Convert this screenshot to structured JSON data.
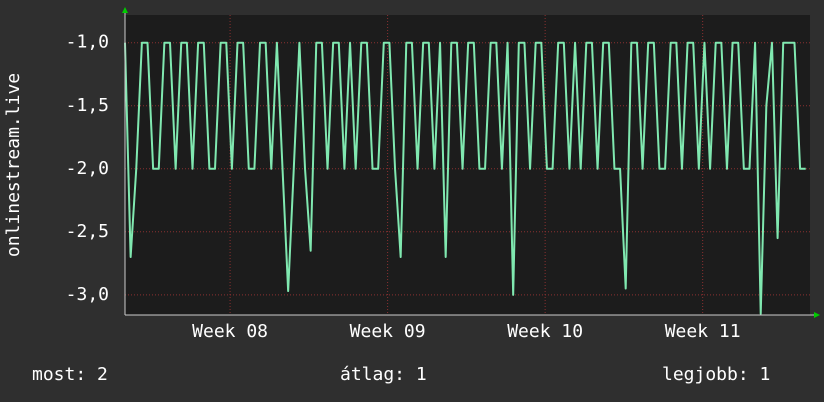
{
  "chart_data": {
    "type": "line",
    "y_label": "onlinestream.live",
    "ylim": [
      -3.16,
      -0.78
    ],
    "yticks": [
      {
        "value": -1.0,
        "label": "-1,0"
      },
      {
        "value": -1.5,
        "label": "-1,5"
      },
      {
        "value": -2.0,
        "label": "-2,0"
      },
      {
        "value": -2.5,
        "label": "-2,5"
      },
      {
        "value": -3.0,
        "label": "-3,0"
      }
    ],
    "xlim": [
      0,
      30.44
    ],
    "xticks": [
      {
        "value": 4.67,
        "label": "Week 08"
      },
      {
        "value": 11.67,
        "label": "Week 09"
      },
      {
        "value": 18.67,
        "label": "Week 10"
      },
      {
        "value": 25.67,
        "label": "Week 11"
      }
    ],
    "grid": true,
    "x": [
      0,
      0.25,
      0.5,
      0.75,
      1,
      1.25,
      1.5,
      1.75,
      2,
      2.25,
      2.5,
      2.75,
      3,
      3.25,
      3.5,
      3.75,
      4,
      4.25,
      4.5,
      4.75,
      5,
      5.25,
      5.5,
      5.75,
      6,
      6.25,
      6.5,
      6.75,
      7,
      7.25,
      7.5,
      7.75,
      8,
      8.25,
      8.5,
      8.75,
      9,
      9.25,
      9.5,
      9.75,
      10,
      10.25,
      10.5,
      10.75,
      11,
      11.25,
      11.5,
      11.75,
      12,
      12.25,
      12.5,
      12.75,
      13,
      13.25,
      13.5,
      13.75,
      14,
      14.25,
      14.5,
      14.75,
      15,
      15.25,
      15.5,
      15.75,
      16,
      16.25,
      16.5,
      16.75,
      17,
      17.25,
      17.5,
      17.75,
      18,
      18.25,
      18.5,
      18.75,
      19,
      19.25,
      19.5,
      19.75,
      20,
      20.25,
      20.5,
      20.75,
      21,
      21.25,
      21.5,
      21.75,
      22,
      22.25,
      22.5,
      22.75,
      23,
      23.25,
      23.5,
      23.75,
      24,
      24.25,
      24.5,
      24.75,
      25,
      25.25,
      25.5,
      25.75,
      26,
      26.25,
      26.5,
      26.75,
      27,
      27.25,
      27.5,
      27.75,
      28,
      28.25,
      28.5,
      28.75,
      29,
      29.25,
      29.5,
      29.75,
      30,
      30.25
    ],
    "series": [
      {
        "color": "#80e8b0",
        "values": [
          -1,
          -2.7,
          -2,
          -1,
          -1,
          -2,
          -2,
          -1,
          -1,
          -2,
          -1,
          -1,
          -2,
          -1,
          -1,
          -2,
          -2,
          -1,
          -1,
          -2,
          -1,
          -1,
          -2,
          -2,
          -1,
          -1,
          -2,
          -1,
          -2,
          -2.97,
          -2,
          -1,
          -2,
          -2.65,
          -1,
          -1,
          -2,
          -1,
          -1,
          -2,
          -1,
          -2,
          -1,
          -1,
          -2,
          -2,
          -1,
          -1,
          -2,
          -2.7,
          -1,
          -1,
          -2,
          -1,
          -1,
          -2,
          -1,
          -2.7,
          -1,
          -1,
          -2,
          -1,
          -1,
          -2,
          -2,
          -1,
          -1,
          -2,
          -1,
          -3.0,
          -1,
          -1,
          -2,
          -1,
          -1,
          -2,
          -2,
          -1,
          -1,
          -2,
          -1,
          -2,
          -1,
          -1,
          -2,
          -1,
          -1,
          -2,
          -2,
          -2.95,
          -1,
          -1,
          -2,
          -1,
          -1,
          -2,
          -2,
          -1,
          -1,
          -2,
          -1,
          -1,
          -2,
          -1,
          -2,
          -1,
          -1,
          -2,
          -1,
          -1,
          -2,
          -2,
          -1,
          -3.15,
          -1.5,
          -1,
          -2.55,
          -1,
          -1,
          -1,
          -2,
          -2
        ]
      }
    ],
    "footer": {
      "current": "most: 2",
      "average": "átlag: 1",
      "best": "legjobb: 1"
    }
  }
}
